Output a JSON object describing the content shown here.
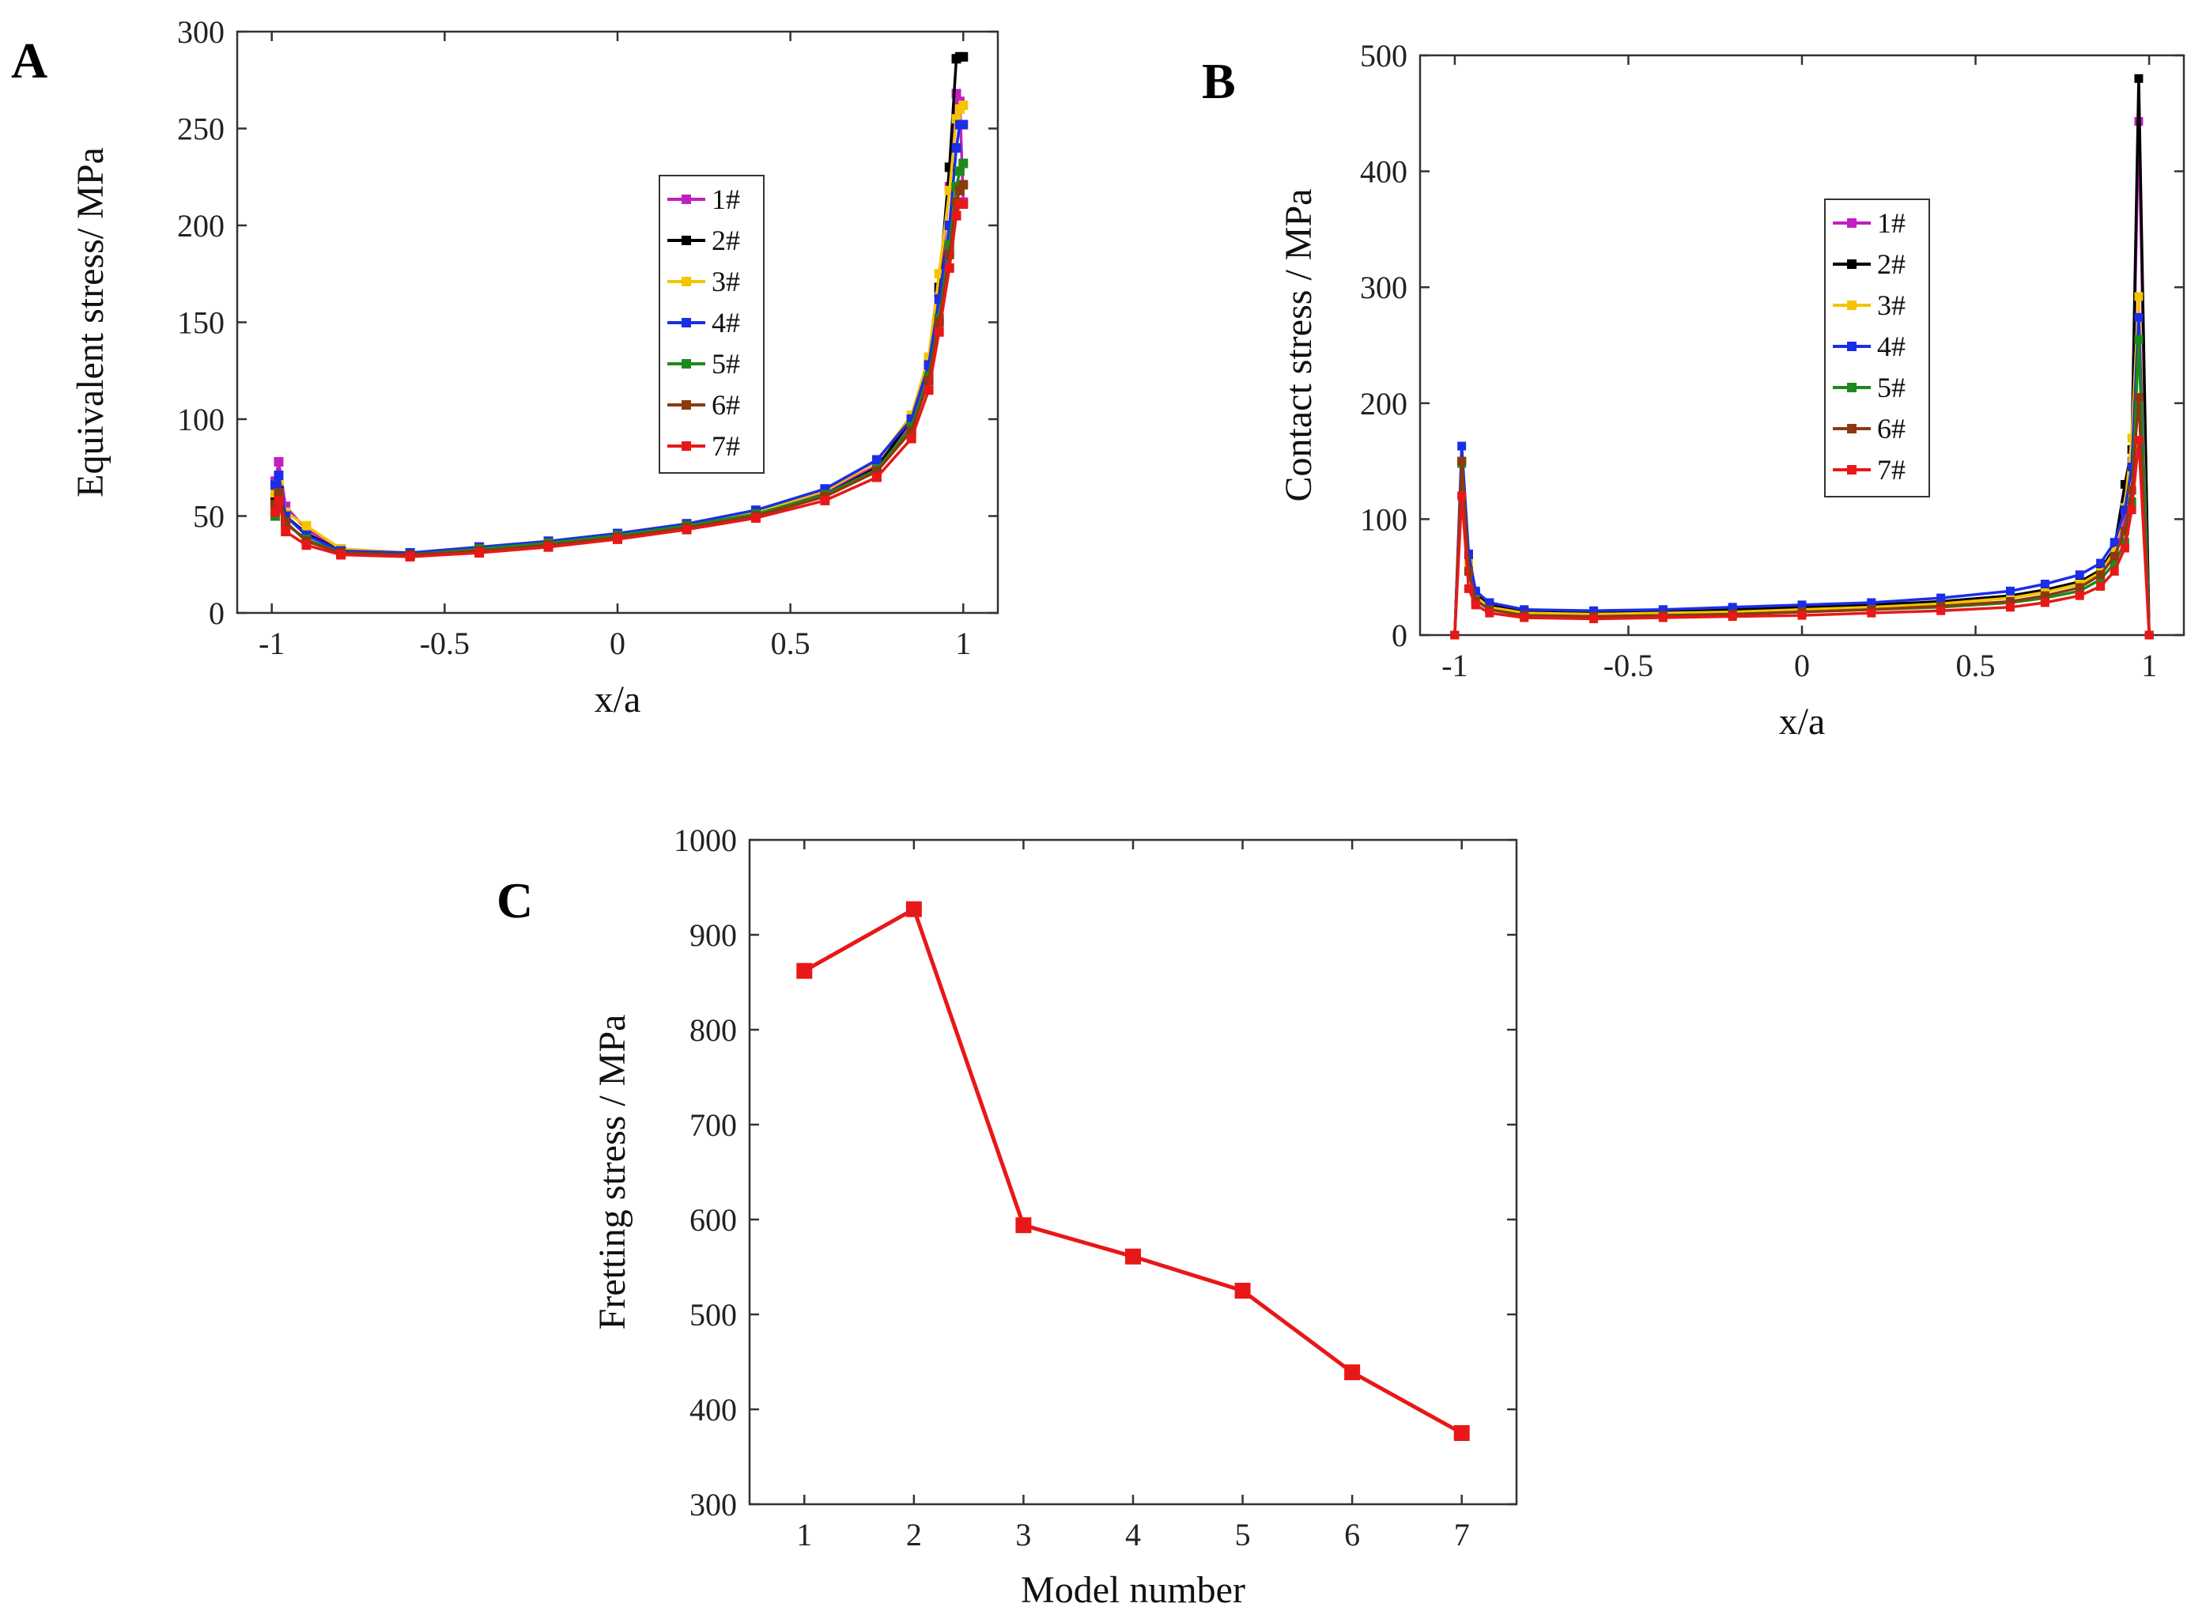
{
  "chart_data": [
    {
      "panel": "A",
      "type": "line",
      "title": "",
      "xlabel": "x/a",
      "ylabel": "Equivalent stress/ MPa",
      "xlim": [
        -1.1,
        1.1
      ],
      "ylim": [
        0,
        300
      ],
      "xticks": [
        -1,
        -0.5,
        0,
        0.5,
        1
      ],
      "xtick_labels": [
        "-1",
        "-0.5",
        "0",
        "0.5",
        "1"
      ],
      "yticks": [
        0,
        50,
        100,
        150,
        200,
        250,
        300
      ],
      "ytick_labels": [
        "0",
        "50",
        "100",
        "150",
        "200",
        "250",
        "300"
      ],
      "legend_position": "center-right",
      "series": [
        {
          "name": "1#",
          "color": "#c020c0",
          "x": [
            -0.99,
            -0.98,
            -0.96,
            -0.9,
            -0.8,
            -0.6,
            -0.4,
            -0.2,
            0,
            0.2,
            0.4,
            0.6,
            0.75,
            0.85,
            0.9,
            0.93,
            0.96,
            0.98,
            0.99,
            1.0
          ],
          "y": [
            68,
            78,
            55,
            43,
            33,
            31,
            34,
            37,
            41,
            46,
            52,
            62,
            76,
            98,
            125,
            165,
            220,
            268,
            264,
            212
          ]
        },
        {
          "name": "2#",
          "color": "#000000",
          "x": [
            -0.99,
            -0.98,
            -0.96,
            -0.9,
            -0.8,
            -0.6,
            -0.4,
            -0.2,
            0,
            0.2,
            0.4,
            0.6,
            0.75,
            0.85,
            0.9,
            0.93,
            0.96,
            0.98,
            0.99,
            1.0
          ],
          "y": [
            58,
            65,
            50,
            41,
            32,
            30,
            33,
            36,
            40,
            45,
            51,
            61,
            75,
            100,
            130,
            168,
            230,
            286,
            287,
            287
          ]
        },
        {
          "name": "3#",
          "color": "#f5c400",
          "x": [
            -0.99,
            -0.98,
            -0.96,
            -0.9,
            -0.8,
            -0.6,
            -0.4,
            -0.2,
            0,
            0.2,
            0.4,
            0.6,
            0.75,
            0.85,
            0.9,
            0.93,
            0.96,
            0.98,
            0.99,
            1.0
          ],
          "y": [
            62,
            68,
            52,
            45,
            33,
            31,
            34,
            37,
            41,
            46,
            52,
            63,
            78,
            102,
            132,
            175,
            218,
            255,
            260,
            262
          ]
        },
        {
          "name": "4#",
          "color": "#1a2ee8",
          "x": [
            -0.99,
            -0.98,
            -0.96,
            -0.9,
            -0.8,
            -0.6,
            -0.4,
            -0.2,
            0,
            0.2,
            0.4,
            0.6,
            0.75,
            0.85,
            0.9,
            0.93,
            0.96,
            0.98,
            0.99,
            1.0
          ],
          "y": [
            66,
            71,
            50,
            40,
            32,
            31,
            34,
            37,
            41,
            46,
            53,
            64,
            79,
            100,
            128,
            162,
            200,
            240,
            252,
            252
          ]
        },
        {
          "name": "5#",
          "color": "#1c8a1c",
          "x": [
            -0.99,
            -0.98,
            -0.96,
            -0.9,
            -0.8,
            -0.6,
            -0.4,
            -0.2,
            0,
            0.2,
            0.4,
            0.6,
            0.75,
            0.85,
            0.9,
            0.93,
            0.96,
            0.98,
            0.99,
            1.0
          ],
          "y": [
            50,
            56,
            46,
            38,
            31,
            30,
            33,
            36,
            40,
            45,
            51,
            61,
            74,
            96,
            122,
            152,
            190,
            220,
            228,
            232
          ]
        },
        {
          "name": "6#",
          "color": "#8b3a10",
          "x": [
            -0.99,
            -0.98,
            -0.96,
            -0.9,
            -0.8,
            -0.6,
            -0.4,
            -0.2,
            0,
            0.2,
            0.4,
            0.6,
            0.75,
            0.85,
            0.9,
            0.93,
            0.96,
            0.98,
            0.99,
            1.0
          ],
          "y": [
            56,
            62,
            47,
            37,
            31,
            30,
            32,
            35,
            39,
            44,
            50,
            60,
            73,
            94,
            120,
            150,
            185,
            212,
            218,
            221
          ]
        },
        {
          "name": "7#",
          "color": "#e81818",
          "x": [
            -0.99,
            -0.98,
            -0.96,
            -0.9,
            -0.8,
            -0.6,
            -0.4,
            -0.2,
            0,
            0.2,
            0.4,
            0.6,
            0.75,
            0.85,
            0.9,
            0.93,
            0.96,
            0.98,
            0.99,
            1.0
          ],
          "y": [
            52,
            58,
            42,
            35,
            30,
            29,
            31,
            34,
            38,
            43,
            49,
            58,
            70,
            90,
            115,
            145,
            178,
            205,
            211,
            211
          ]
        }
      ]
    },
    {
      "panel": "B",
      "type": "line",
      "title": "",
      "xlabel": "x/a",
      "ylabel": "Contact stress / MPa",
      "xlim": [
        -1.1,
        1.1
      ],
      "ylim": [
        0,
        500
      ],
      "xticks": [
        -1,
        -0.5,
        0,
        0.5,
        1
      ],
      "xtick_labels": [
        "-1",
        "-0.5",
        "0",
        "0.5",
        "1"
      ],
      "yticks": [
        0,
        100,
        200,
        300,
        400,
        500
      ],
      "ytick_labels": [
        "0",
        "100",
        "200",
        "300",
        "400",
        "500"
      ],
      "legend_position": "center-right",
      "series": [
        {
          "name": "1#",
          "color": "#c020c0",
          "x": [
            -1.0,
            -0.98,
            -0.96,
            -0.94,
            -0.9,
            -0.8,
            -0.6,
            -0.4,
            -0.2,
            0,
            0.2,
            0.4,
            0.6,
            0.7,
            0.8,
            0.86,
            0.9,
            0.93,
            0.95,
            0.97,
            1.0
          ],
          "y": [
            0,
            150,
            68,
            35,
            25,
            20,
            19,
            20,
            21,
            23,
            25,
            28,
            33,
            38,
            45,
            55,
            70,
            100,
            150,
            443,
            0
          ]
        },
        {
          "name": "2#",
          "color": "#000000",
          "x": [
            -1.0,
            -0.98,
            -0.96,
            -0.94,
            -0.9,
            -0.8,
            -0.6,
            -0.4,
            -0.2,
            0,
            0.2,
            0.4,
            0.6,
            0.7,
            0.8,
            0.86,
            0.9,
            0.93,
            0.95,
            0.97,
            1.0
          ],
          "y": [
            0,
            150,
            68,
            36,
            26,
            21,
            20,
            21,
            22,
            24,
            26,
            29,
            34,
            39,
            46,
            56,
            75,
            130,
            160,
            480,
            0
          ]
        },
        {
          "name": "3#",
          "color": "#f5c400",
          "x": [
            -1.0,
            -0.98,
            -0.96,
            -0.94,
            -0.9,
            -0.8,
            -0.6,
            -0.4,
            -0.2,
            0,
            0.2,
            0.4,
            0.6,
            0.7,
            0.8,
            0.86,
            0.9,
            0.93,
            0.95,
            0.97,
            1.0
          ],
          "y": [
            0,
            150,
            62,
            33,
            24,
            19,
            18,
            19,
            20,
            22,
            24,
            27,
            32,
            37,
            44,
            54,
            72,
            110,
            170,
            292,
            0
          ]
        },
        {
          "name": "4#",
          "color": "#1a2ee8",
          "x": [
            -1.0,
            -0.98,
            -0.96,
            -0.94,
            -0.9,
            -0.8,
            -0.6,
            -0.4,
            -0.2,
            0,
            0.2,
            0.4,
            0.6,
            0.7,
            0.8,
            0.86,
            0.9,
            0.93,
            0.95,
            0.97,
            1.0
          ],
          "y": [
            0,
            163,
            70,
            38,
            28,
            22,
            21,
            22,
            24,
            26,
            28,
            32,
            38,
            44,
            52,
            62,
            80,
            108,
            145,
            274,
            0
          ]
        },
        {
          "name": "5#",
          "color": "#1c8a1c",
          "x": [
            -1.0,
            -0.98,
            -0.96,
            -0.94,
            -0.9,
            -0.8,
            -0.6,
            -0.4,
            -0.2,
            0,
            0.2,
            0.4,
            0.6,
            0.7,
            0.8,
            0.86,
            0.9,
            0.93,
            0.95,
            0.97,
            1.0
          ],
          "y": [
            0,
            148,
            55,
            30,
            22,
            17,
            16,
            17,
            18,
            20,
            22,
            24,
            28,
            32,
            38,
            48,
            62,
            80,
            115,
            255,
            0
          ]
        },
        {
          "name": "6#",
          "color": "#8b3a10",
          "x": [
            -1.0,
            -0.98,
            -0.96,
            -0.94,
            -0.9,
            -0.8,
            -0.6,
            -0.4,
            -0.2,
            0,
            0.2,
            0.4,
            0.6,
            0.7,
            0.8,
            0.86,
            0.9,
            0.93,
            0.95,
            0.97,
            1.0
          ],
          "y": [
            0,
            150,
            55,
            30,
            22,
            17,
            16,
            17,
            18,
            20,
            22,
            25,
            29,
            34,
            41,
            52,
            68,
            90,
            125,
            205,
            0
          ]
        },
        {
          "name": "7#",
          "color": "#e81818",
          "x": [
            -1.0,
            -0.98,
            -0.96,
            -0.94,
            -0.9,
            -0.8,
            -0.6,
            -0.4,
            -0.2,
            0,
            0.2,
            0.4,
            0.6,
            0.7,
            0.8,
            0.86,
            0.9,
            0.93,
            0.95,
            0.97,
            1.0
          ],
          "y": [
            0,
            120,
            40,
            26,
            19,
            15,
            14,
            15,
            16,
            17,
            19,
            21,
            24,
            28,
            34,
            42,
            55,
            75,
            108,
            168,
            0
          ]
        }
      ]
    },
    {
      "panel": "C",
      "type": "line",
      "title": "",
      "xlabel": "Model number",
      "ylabel": "Fretting stress / MPa",
      "xlim": [
        0.5,
        7.5
      ],
      "ylim": [
        300,
        1000
      ],
      "xticks": [
        1,
        2,
        3,
        4,
        5,
        6,
        7
      ],
      "xtick_labels": [
        "1",
        "2",
        "3",
        "4",
        "5",
        "6",
        "7"
      ],
      "yticks": [
        300,
        400,
        500,
        600,
        700,
        800,
        900,
        1000
      ],
      "ytick_labels": [
        "300",
        "400",
        "500",
        "600",
        "700",
        "800",
        "900",
        "1000"
      ],
      "series": [
        {
          "name": "Fretting stress",
          "color": "#e81818",
          "x": [
            1,
            2,
            3,
            4,
            5,
            6,
            7
          ],
          "y": [
            862,
            927,
            594,
            561,
            525,
            439,
            375
          ]
        }
      ]
    }
  ]
}
